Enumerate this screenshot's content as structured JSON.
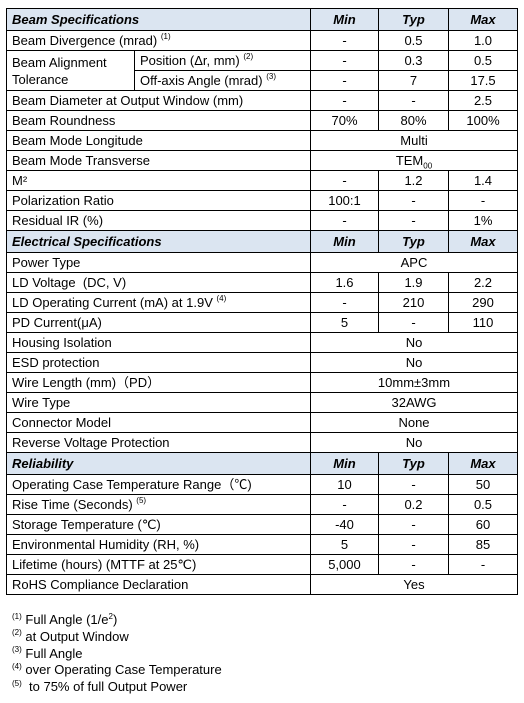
{
  "headers": {
    "min": "Min",
    "typ": "Typ",
    "max": "Max"
  },
  "sections": {
    "beam": "Beam Specifications",
    "electrical": "Electrical Specifications",
    "reliability": "Reliability"
  },
  "beam": {
    "divergence": {
      "label": "Beam Divergence (mrad)",
      "note": "(1)",
      "min": "-",
      "typ": "0.5",
      "max": "1.0"
    },
    "alignment": {
      "label": "Beam Alignment Tolerance",
      "position": {
        "label": "Position (Δr, mm)",
        "note": "(2)",
        "min": "-",
        "typ": "0.3",
        "max": "0.5"
      },
      "offaxis": {
        "label": "Off-axis Angle (mrad)",
        "note": "(3)",
        "min": "-",
        "typ": "7",
        "max": "17.5"
      }
    },
    "diameter": {
      "label": "Beam Diameter at Output Window (mm)",
      "min": "-",
      "typ": "-",
      "max": "2.5"
    },
    "roundness": {
      "label": "Beam Roundness",
      "min": "70%",
      "typ": "80%",
      "max": "100%"
    },
    "mode_long": {
      "label": "Beam Mode Longitude",
      "value": "Multi"
    },
    "mode_trans": {
      "label": "Beam Mode Transverse",
      "value": "TEM",
      "value_sub": "00"
    },
    "m2": {
      "label": "M²",
      "min": "-",
      "typ": "1.2",
      "max": "1.4"
    },
    "polarization": {
      "label": "Polarization Ratio",
      "min": "100:1",
      "typ": "-",
      "max": "-"
    },
    "residual_ir": {
      "label": "Residual IR (%)",
      "min": "-",
      "typ": "-",
      "max": "1%"
    }
  },
  "electrical": {
    "power_type": {
      "label": "Power Type",
      "value": "APC"
    },
    "ld_voltage": {
      "label": "LD Voltage  (DC, V)",
      "min": "1.6",
      "typ": "1.9",
      "max": "2.2"
    },
    "ld_current": {
      "label": "LD Operating Current (mA) at 1.9V",
      "note": "(4)",
      "min": "-",
      "typ": "210",
      "max": "290"
    },
    "pd_current": {
      "label": "PD Current(μA)",
      "min": "5",
      "typ": "-",
      "max": "110"
    },
    "housing": {
      "label": "Housing Isolation",
      "value": "No"
    },
    "esd": {
      "label": "ESD protection",
      "value": "No"
    },
    "wire_length": {
      "label": "Wire Length (mm)（PD）",
      "value": "10mm±3mm"
    },
    "wire_type": {
      "label": "Wire Type",
      "value": "32AWG"
    },
    "connector": {
      "label": "Connector Model",
      "value": "None"
    },
    "reverse": {
      "label": "Reverse Voltage Protection",
      "value": "No"
    }
  },
  "reliability": {
    "op_temp": {
      "label": "Operating Case Temperature Range（℃)",
      "min": "10",
      "typ": "-",
      "max": "50"
    },
    "rise_time": {
      "label": "Rise Time (Seconds)",
      "note": "(5)",
      "min": "-",
      "typ": "0.2",
      "max": "0.5"
    },
    "storage": {
      "label": "Storage Temperature (℃)",
      "min": "-40",
      "typ": "-",
      "max": "60"
    },
    "humidity": {
      "label": "Environmental Humidity (RH, %)",
      "min": "5",
      "typ": "-",
      "max": "85"
    },
    "lifetime": {
      "label": "Lifetime (hours) (MTTF at 25℃)",
      "min": "5,000",
      "typ": "-",
      "max": "-"
    },
    "rohs": {
      "label": "RoHS Compliance Declaration",
      "value": "Yes"
    }
  },
  "notes": [
    {
      "mark": "(1)",
      "text": " Full Angle (1/e",
      "sup": "2",
      "tail": ")"
    },
    {
      "mark": "(2)",
      "text": " at Output Window"
    },
    {
      "mark": "(3)",
      "text": " Full Angle"
    },
    {
      "mark": "(4)",
      "text": " over Operating Case Temperature"
    },
    {
      "mark": "(5)",
      "text": "  to 75% of full Output Power"
    }
  ]
}
